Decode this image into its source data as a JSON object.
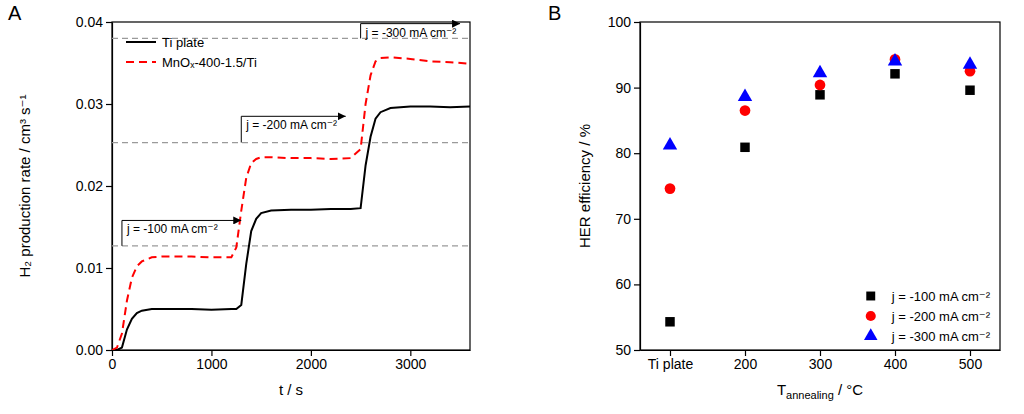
{
  "chart_data": [
    {
      "type": "line",
      "title": "A",
      "xlabel": "t / s",
      "ylabel": "H₂ production rate / cm³ s⁻¹",
      "x": [
        0,
        50,
        100,
        150,
        200,
        250,
        300,
        400,
        500,
        600,
        800,
        1000,
        1200,
        1250,
        1300,
        1350,
        1400,
        1450,
        1500,
        1600,
        1800,
        2000,
        2200,
        2400,
        2500,
        2550,
        2600,
        2650,
        2700,
        2800,
        3000,
        3200,
        3400,
        3600
      ],
      "xlim": [
        0,
        3600
      ],
      "xticks": [
        0,
        1000,
        2000,
        3000
      ],
      "ylim": [
        0,
        0.04
      ],
      "yticks": [
        {
          "value": 0,
          "label": "0.00"
        },
        {
          "value": 0.01,
          "label": "0.01"
        },
        {
          "value": 0.02,
          "label": "0.02"
        },
        {
          "value": 0.03,
          "label": "0.03"
        },
        {
          "value": 0.04,
          "label": "0.04"
        }
      ],
      "series": [
        {
          "name": "Ti plate",
          "color": "#000000",
          "line_style": "solid",
          "values": [
            0,
            0,
            0.0003,
            0.0025,
            0.0038,
            0.0045,
            0.0048,
            0.005,
            0.005,
            0.005,
            0.005,
            0.0049,
            0.005,
            0.005,
            0.0055,
            0.0105,
            0.0145,
            0.016,
            0.0167,
            0.017,
            0.0171,
            0.0171,
            0.0172,
            0.0172,
            0.0173,
            0.0225,
            0.026,
            0.0282,
            0.029,
            0.0295,
            0.0297,
            0.0297,
            0.0296,
            0.0297
          ]
        },
        {
          "name": "MnOₓ-400-1.5/Ti",
          "color": "#ff0000",
          "line_style": "dashed",
          "values": [
            0,
            0.0003,
            0.002,
            0.006,
            0.0088,
            0.0102,
            0.0108,
            0.0113,
            0.0114,
            0.0114,
            0.0114,
            0.0113,
            0.0113,
            0.0125,
            0.017,
            0.021,
            0.0228,
            0.0233,
            0.0235,
            0.0235,
            0.0234,
            0.0234,
            0.0233,
            0.0234,
            0.0245,
            0.03,
            0.0335,
            0.0352,
            0.0356,
            0.0357,
            0.0355,
            0.0352,
            0.0351,
            0.0349
          ]
        }
      ],
      "reference_lines": [
        0.0127,
        0.0253,
        0.038
      ],
      "annotations": [
        {
          "text": "j = -100 mA cm⁻²",
          "x": 100,
          "x_end": 1300,
          "y": 0.0158,
          "y0": 0.0127
        },
        {
          "text": "j = -200 mA cm⁻²",
          "x": 1300,
          "x_end": 2350,
          "y": 0.0285,
          "y0": 0.0253
        },
        {
          "text": "j = -300 mA cm⁻²",
          "x": 2500,
          "x_end": 3500,
          "y": 0.0398,
          "y0": 0.038
        }
      ],
      "legend": "upper left"
    },
    {
      "type": "scatter",
      "title": "B",
      "xlabel": "Tannealing / °C",
      "ylabel": "HER efficiency / %",
      "categories": [
        "Ti plate",
        "200",
        "300",
        "400",
        "500"
      ],
      "ylim": [
        50,
        100
      ],
      "yticks": [
        50,
        60,
        70,
        80,
        90,
        100
      ],
      "series": [
        {
          "name": "j = -100 mA cm⁻²",
          "color": "#000000",
          "marker": "square",
          "values": [
            54.3,
            80.9,
            88.9,
            92.1,
            89.6
          ]
        },
        {
          "name": "j = -200 mA cm⁻²",
          "color": "#ff0000",
          "marker": "circle",
          "values": [
            74.6,
            86.5,
            90.4,
            94.3,
            92.5
          ]
        },
        {
          "name": "j = -300 mA cm⁻²",
          "color": "#0000ff",
          "marker": "triangle",
          "values": [
            81.2,
            88.6,
            92.2,
            94.0,
            93.5
          ]
        }
      ],
      "legend": "lower right"
    }
  ]
}
